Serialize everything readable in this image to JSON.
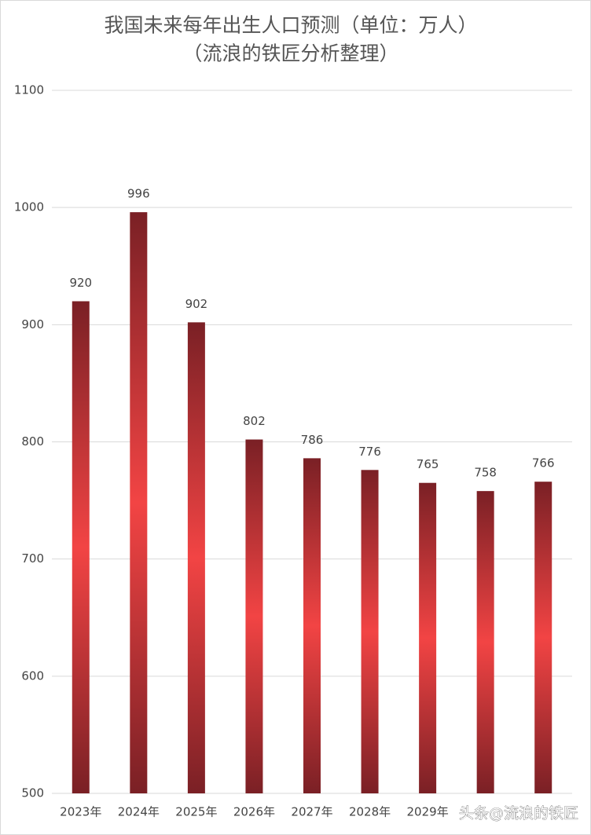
{
  "chart_data": {
    "type": "bar",
    "title": "我国未来每年出生人口预测（单位：万人）",
    "subtitle": "（流浪的铁匠分析整理）",
    "categories": [
      "2023年",
      "2024年",
      "2025年",
      "2026年",
      "2027年",
      "2028年",
      "2029年",
      null,
      null
    ],
    "values": [
      920,
      996,
      902,
      802,
      786,
      776,
      765,
      758,
      766
    ],
    "color": "#f24444",
    "ylim": [
      500,
      1100
    ],
    "yticks": [
      500,
      600,
      700,
      800,
      900,
      1000,
      1100
    ],
    "grid": true,
    "watermark": "头条@流浪的铁匠"
  }
}
